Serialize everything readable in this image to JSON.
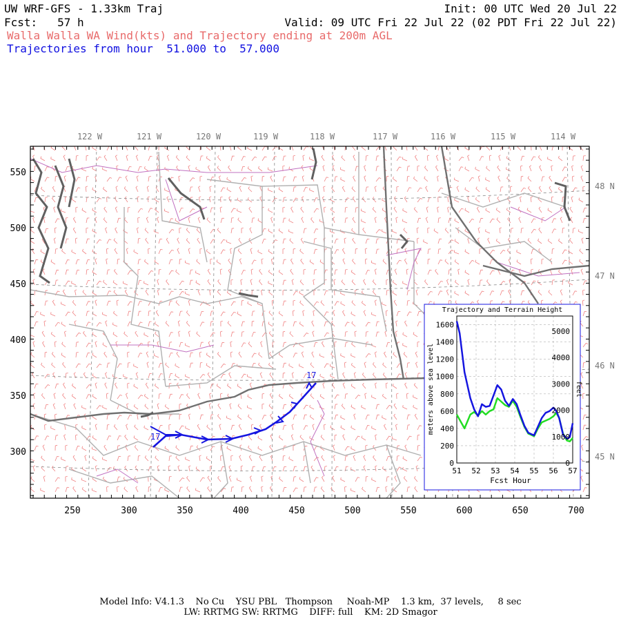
{
  "header": {
    "model": "UW WRF-GFS - 1.33km Traj",
    "init": "Init: 00 UTC Wed 20 Jul 22",
    "fcst": "Fcst:   57 h",
    "valid": "Valid: 09 UTC Fri 22 Jul 22 (02 PDT Fri 22 Jul 22)",
    "product": "Walla Walla WA Wind(kts) and Trajectory ending at 200m AGL",
    "traj_hours": "Trajectories from hour  51.000 to  57.000"
  },
  "map": {
    "longitude_labels": [
      "122 W",
      "121 W",
      "120 W",
      "119 W",
      "118 W",
      "117 W",
      "116 W",
      "115 W",
      "114 W"
    ],
    "latitude_labels": [
      "48 N",
      "47 N",
      "46 N",
      "45 N"
    ],
    "x_ticks": [
      "250",
      "300",
      "350",
      "400",
      "450",
      "500",
      "550",
      "600",
      "650",
      "700"
    ],
    "y_ticks": [
      "550",
      "500",
      "450",
      "400",
      "350",
      "300"
    ],
    "trajectory_start_label": "17",
    "trajectory_end_label": "17",
    "colors": {
      "wind": "#f08080",
      "trajectory": "#1515e0",
      "state_line": "#707070",
      "county_line": "#b0b0b0",
      "water": "#606060",
      "roads": "#c070c0"
    }
  },
  "inset": {
    "title": "Trajectory and Terrain Height",
    "ylabel_left": "meters above sea level",
    "ylabel_right": "feet",
    "xlabel": "Fcst Hour",
    "x_ticks": [
      "51",
      "52",
      "53",
      "54",
      "55",
      "56",
      "57"
    ],
    "y_ticks_left": [
      "1600",
      "1400",
      "1200",
      "1000",
      "800",
      "600",
      "400",
      "200",
      "0"
    ],
    "y_ticks_right": [
      "5000",
      "4000",
      "3000",
      "2000",
      "1000",
      "0"
    ]
  },
  "chart_data": {
    "type": "line",
    "title": "Trajectory and Terrain Height",
    "xlabel": "Fcst Hour",
    "ylabel": "meters above sea level",
    "xlim": [
      51,
      57
    ],
    "ylim": [
      0,
      1700
    ],
    "series": [
      {
        "color": "#1515e0",
        "x": [
          51,
          51.15,
          51.4,
          51.7,
          51.9,
          52.1,
          52.3,
          52.5,
          52.7,
          52.9,
          53.1,
          53.3,
          53.5,
          53.7,
          53.9,
          54.1,
          54.3,
          54.5,
          54.7,
          54.9,
          55.0,
          55.2,
          55.4,
          55.6,
          55.8,
          56.0,
          56.15,
          56.3,
          56.5,
          56.7,
          56.85,
          57.0
        ],
        "y": [
          1640,
          1500,
          1050,
          750,
          620,
          540,
          680,
          650,
          660,
          780,
          900,
          850,
          720,
          660,
          740,
          680,
          550,
          430,
          350,
          330,
          320,
          420,
          520,
          580,
          600,
          640,
          600,
          520,
          330,
          280,
          300,
          460
        ]
      },
      {
        "color": "#22dd22",
        "x": [
          51,
          51.2,
          51.4,
          51.7,
          51.9,
          52.1,
          52.3,
          52.5,
          52.7,
          52.9,
          53.1,
          53.3,
          53.5,
          53.7,
          53.9,
          54.1,
          54.3,
          54.5,
          54.7,
          54.9,
          55.0,
          55.2,
          55.4,
          55.6,
          55.8,
          56.0,
          56.15,
          56.3,
          56.5,
          56.7,
          56.85,
          57.0
        ],
        "y": [
          560,
          480,
          400,
          560,
          590,
          550,
          600,
          560,
          600,
          620,
          750,
          710,
          670,
          650,
          720,
          650,
          530,
          420,
          340,
          320,
          310,
          400,
          470,
          490,
          510,
          540,
          580,
          520,
          340,
          260,
          250,
          290
        ]
      }
    ]
  },
  "footer": {
    "line1": "Model Info: V4.1.3    No Cu    YSU PBL   Thompson     Noah-MP    1.3 km,  37 levels,     8 sec",
    "line2": "LW: RRTMG SW: RRTMG    DIFF: full    KM: 2D Smagor"
  }
}
